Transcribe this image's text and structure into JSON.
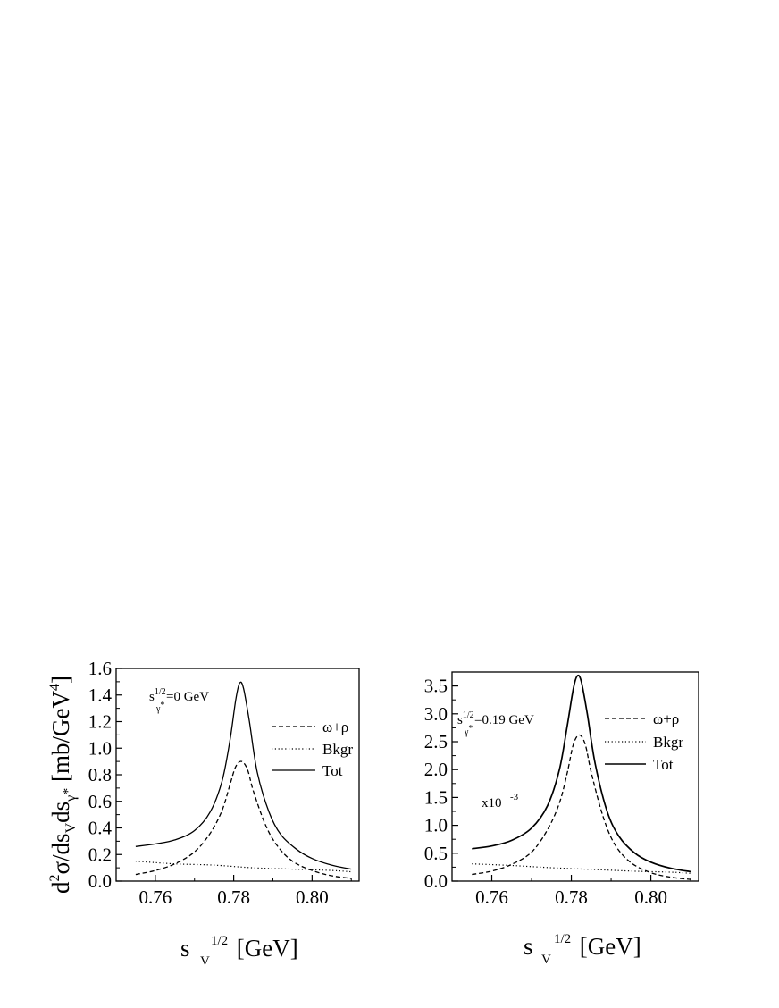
{
  "chart_data": [
    {
      "type": "line",
      "panel": "left",
      "xlabel": "s_V^{1/2} [GeV]",
      "ylabel": "d²σ/ds_V ds_γ* [mb/GeV⁴]",
      "xlim": [
        0.75,
        0.812
      ],
      "ylim": [
        0.0,
        1.6
      ],
      "xticks": [
        "0.76",
        "0.78",
        "0.80"
      ],
      "yticks": [
        "0.0",
        "0.2",
        "0.4",
        "0.6",
        "0.8",
        "1.0",
        "1.2",
        "1.4",
        "1.6"
      ],
      "annotation": "s_γ*^{1/2}=0 GeV",
      "legend": {
        "position": "top-right",
        "entries": [
          "ω+ρ",
          "Bkgr",
          "Tot"
        ]
      },
      "series": [
        {
          "name": "ω+ρ",
          "style": "dashed",
          "x": [
            0.755,
            0.76,
            0.765,
            0.77,
            0.774,
            0.777,
            0.779,
            0.7805,
            0.782,
            0.7835,
            0.785,
            0.788,
            0.791,
            0.795,
            0.8,
            0.805,
            0.81
          ],
          "y": [
            0.05,
            0.08,
            0.13,
            0.22,
            0.36,
            0.53,
            0.72,
            0.86,
            0.9,
            0.84,
            0.68,
            0.43,
            0.27,
            0.15,
            0.08,
            0.04,
            0.02
          ]
        },
        {
          "name": "Bkgr",
          "style": "dotted",
          "x": [
            0.755,
            0.765,
            0.775,
            0.785,
            0.795,
            0.805,
            0.81
          ],
          "y": [
            0.15,
            0.13,
            0.12,
            0.1,
            0.09,
            0.08,
            0.07
          ]
        },
        {
          "name": "Tot",
          "style": "solid",
          "x": [
            0.755,
            0.76,
            0.765,
            0.77,
            0.774,
            0.777,
            0.779,
            0.7805,
            0.7815,
            0.7825,
            0.784,
            0.786,
            0.789,
            0.792,
            0.796,
            0.8,
            0.805,
            0.81
          ],
          "y": [
            0.26,
            0.28,
            0.31,
            0.38,
            0.52,
            0.75,
            1.05,
            1.36,
            1.49,
            1.45,
            1.2,
            0.82,
            0.52,
            0.35,
            0.24,
            0.17,
            0.12,
            0.09
          ]
        }
      ]
    },
    {
      "type": "line",
      "panel": "right",
      "xlabel": "s_V^{1/2} [GeV]",
      "ylabel": "",
      "xlim": [
        0.75,
        0.812
      ],
      "ylim": [
        0.0,
        3.75
      ],
      "xticks": [
        "0.76",
        "0.78",
        "0.80"
      ],
      "yticks": [
        "0.0",
        "0.5",
        "1.0",
        "1.5",
        "2.0",
        "2.5",
        "3.0",
        "3.5"
      ],
      "annotation": "s_γ*^{1/2}=0.19 GeV",
      "scale_note": "x10^{-3}",
      "legend": {
        "position": "top-right",
        "entries": [
          "ω+ρ",
          "Bkgr",
          "Tot"
        ]
      },
      "series": [
        {
          "name": "ω+ρ",
          "style": "dashed",
          "x": [
            0.755,
            0.76,
            0.765,
            0.77,
            0.774,
            0.777,
            0.779,
            0.7805,
            0.782,
            0.7835,
            0.785,
            0.788,
            0.791,
            0.795,
            0.8,
            0.805,
            0.81
          ],
          "y": [
            0.12,
            0.18,
            0.3,
            0.52,
            0.92,
            1.4,
            1.95,
            2.45,
            2.62,
            2.45,
            1.95,
            1.15,
            0.65,
            0.33,
            0.15,
            0.07,
            0.03
          ]
        },
        {
          "name": "Bkgr",
          "style": "dotted",
          "x": [
            0.755,
            0.765,
            0.775,
            0.785,
            0.795,
            0.805,
            0.81
          ],
          "y": [
            0.31,
            0.28,
            0.24,
            0.21,
            0.18,
            0.16,
            0.14
          ]
        },
        {
          "name": "Tot",
          "style": "solid",
          "x": [
            0.755,
            0.76,
            0.765,
            0.77,
            0.774,
            0.777,
            0.779,
            0.7805,
            0.7815,
            0.7825,
            0.784,
            0.786,
            0.789,
            0.792,
            0.796,
            0.8,
            0.805,
            0.81
          ],
          "y": [
            0.58,
            0.63,
            0.73,
            0.95,
            1.35,
            2.0,
            2.8,
            3.45,
            3.68,
            3.58,
            3.0,
            2.1,
            1.25,
            0.8,
            0.5,
            0.34,
            0.23,
            0.17
          ]
        }
      ]
    }
  ],
  "labels": {
    "left_ylabel_main": "d",
    "left_ylabel_sup": "2",
    "left_ylabel_rest": "σ/ds",
    "left_ylabel_subV": "V",
    "left_ylabel_ds": "ds",
    "left_ylabel_subg": "γ",
    "left_ylabel_star": "*",
    "left_ylabel_unit": " [mb/GeV",
    "left_ylabel_unit_sup": "4",
    "left_ylabel_close": "]",
    "xlabel_s": "s",
    "xlabel_sub": "V",
    "xlabel_sup": "1/2",
    "xlabel_unit": " [GeV]",
    "annot_s": "s",
    "annot_sup": "1/2",
    "annot_sub": "γ",
    "annot_star": "*",
    "left_annot_val": "=0 GeV",
    "right_annot_val": "=0.19 GeV",
    "scale_base": "x10",
    "scale_exp": "-3"
  }
}
